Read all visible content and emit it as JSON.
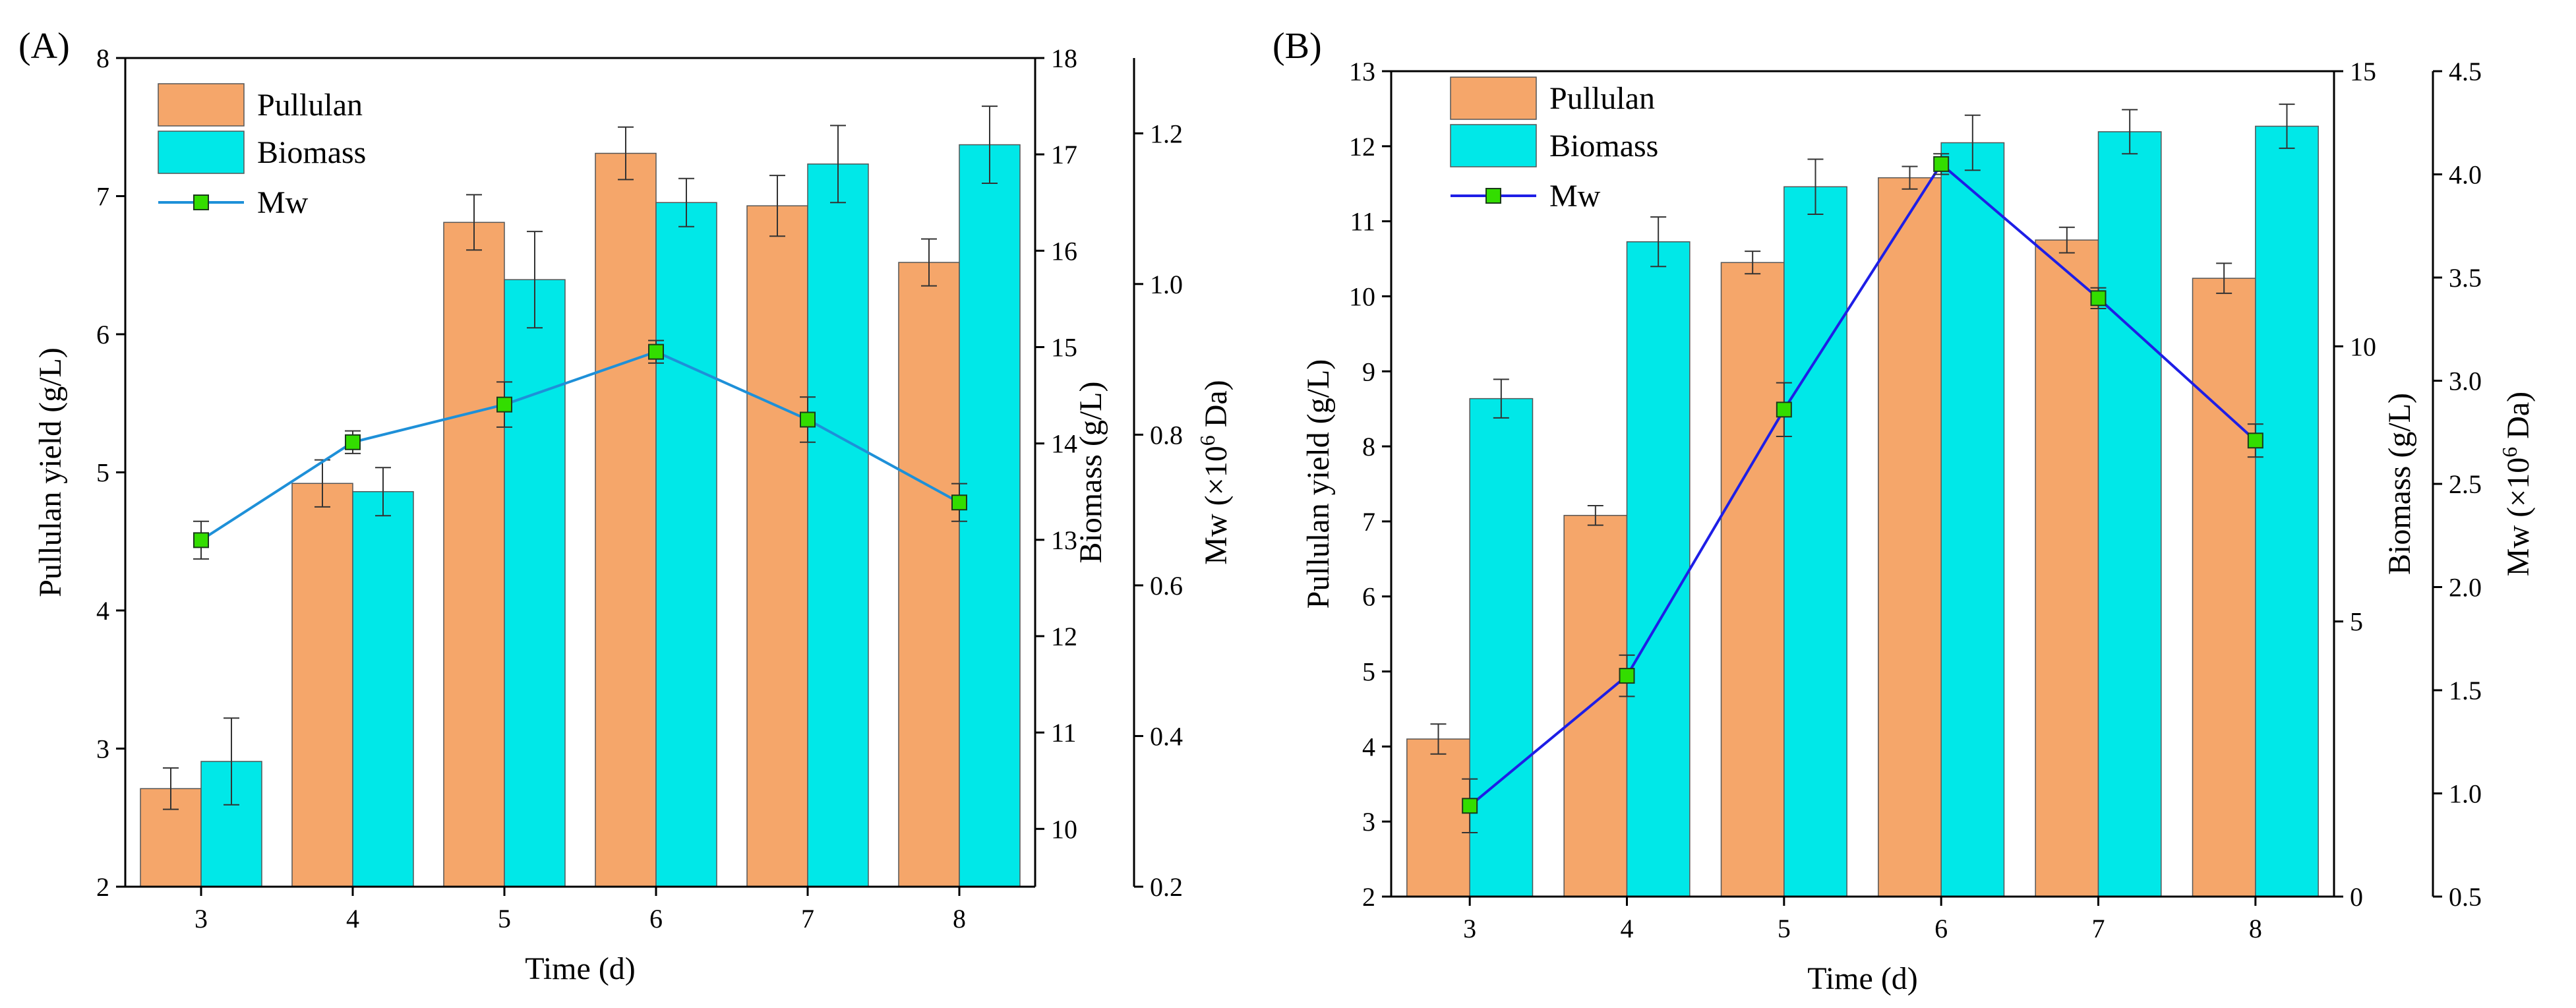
{
  "colors": {
    "pullulan": "#F5A66A",
    "biomass": "#00E8E8",
    "mw_line_a": "#1E90D8",
    "mw_line_b": "#1E1EE6",
    "mw_marker": "#33DD00"
  },
  "chart_data": [
    {
      "type": "bar",
      "panel_label": "(A)",
      "xlabel": "Time (d)",
      "categories": [
        "3",
        "4",
        "5",
        "6",
        "7",
        "8"
      ],
      "legend": {
        "position": "top-left",
        "entries": [
          "Pullulan",
          "Biomass",
          "Mw"
        ]
      },
      "axes": {
        "left": {
          "label": "Pullulan yield (g/L)",
          "range": [
            2,
            8
          ],
          "ticks": [
            "2",
            "3",
            "4",
            "5",
            "6",
            "7",
            "8"
          ],
          "tick_values": [
            2,
            3,
            4,
            5,
            6,
            7,
            8
          ]
        },
        "right1": {
          "label": "Biomass (g/L)",
          "range": [
            9.4,
            18
          ],
          "ticks": [
            "10",
            "11",
            "12",
            "13",
            "14",
            "15",
            "16",
            "17",
            "18"
          ],
          "tick_values": [
            10,
            11,
            12,
            13,
            14,
            15,
            16,
            17,
            18
          ]
        },
        "right2": {
          "label_prefix": "Mw (×10",
          "label_sup": "6",
          "label_suffix": " Da)",
          "range": [
            0.2,
            1.3
          ],
          "ticks": [
            "0.2",
            "0.4",
            "0.6",
            "0.8",
            "1.0",
            "1.2"
          ],
          "tick_values": [
            0.2,
            0.4,
            0.6,
            0.8,
            1.0,
            1.2
          ]
        }
      },
      "series": [
        {
          "name": "Pullulan",
          "kind": "bar",
          "axis": "left",
          "values": [
            2.71,
            4.92,
            6.81,
            7.31,
            6.93,
            6.52
          ],
          "errors": [
            0.15,
            0.17,
            0.2,
            0.19,
            0.22,
            0.17
          ]
        },
        {
          "name": "Biomass",
          "kind": "bar",
          "axis": "right1",
          "values": [
            10.7,
            13.5,
            15.7,
            16.5,
            16.9,
            17.1
          ],
          "errors": [
            0.45,
            0.25,
            0.5,
            0.25,
            0.4,
            0.4
          ]
        },
        {
          "name": "Mw",
          "kind": "line",
          "axis": "right2",
          "values": [
            0.66,
            0.79,
            0.84,
            0.91,
            0.82,
            0.71
          ],
          "errors": [
            0.025,
            0.015,
            0.03,
            0.015,
            0.03,
            0.025
          ]
        }
      ]
    },
    {
      "type": "bar",
      "panel_label": "(B)",
      "xlabel": "Time (d)",
      "categories": [
        "3",
        "4",
        "5",
        "6",
        "7",
        "8"
      ],
      "legend": {
        "position": "top-left",
        "entries": [
          "Pullulan",
          "Biomass",
          "Mw"
        ]
      },
      "axes": {
        "left": {
          "label": "Pullulan yield (g/L)",
          "range": [
            2,
            13
          ],
          "ticks": [
            "2",
            "3",
            "4",
            "5",
            "6",
            "7",
            "8",
            "9",
            "10",
            "11",
            "12",
            "13"
          ],
          "tick_values": [
            2,
            3,
            4,
            5,
            6,
            7,
            8,
            9,
            10,
            11,
            12,
            13
          ]
        },
        "right1": {
          "label": "Biomass (g/L)",
          "range": [
            0,
            15
          ],
          "ticks": [
            "0",
            "5",
            "10",
            "15"
          ],
          "tick_values": [
            0,
            5,
            10,
            15
          ]
        },
        "right2": {
          "label_prefix": "Mw (×10",
          "label_sup": "6",
          "label_suffix": " Da)",
          "range": [
            0.5,
            4.5
          ],
          "ticks": [
            "0.5",
            "1.0",
            "1.5",
            "2.0",
            "2.5",
            "3.0",
            "3.5",
            "4.0",
            "4.5"
          ],
          "tick_values": [
            0.5,
            1.0,
            1.5,
            2.0,
            2.5,
            3.0,
            3.5,
            4.0,
            4.5
          ]
        }
      },
      "series": [
        {
          "name": "Pullulan",
          "kind": "bar",
          "axis": "left",
          "values": [
            4.1,
            7.08,
            10.45,
            11.58,
            10.75,
            10.24
          ],
          "errors": [
            0.2,
            0.13,
            0.15,
            0.15,
            0.17,
            0.2
          ]
        },
        {
          "name": "Biomass",
          "kind": "bar",
          "axis": "right1",
          "values": [
            9.05,
            11.9,
            12.9,
            13.7,
            13.9,
            14.0
          ],
          "errors": [
            0.35,
            0.45,
            0.5,
            0.5,
            0.4,
            0.4
          ]
        },
        {
          "name": "Mw",
          "kind": "line",
          "axis": "right2",
          "values": [
            0.94,
            1.57,
            2.86,
            4.05,
            3.4,
            2.71
          ],
          "errors": [
            0.13,
            0.1,
            0.13,
            0.05,
            0.05,
            0.08
          ]
        }
      ]
    }
  ]
}
